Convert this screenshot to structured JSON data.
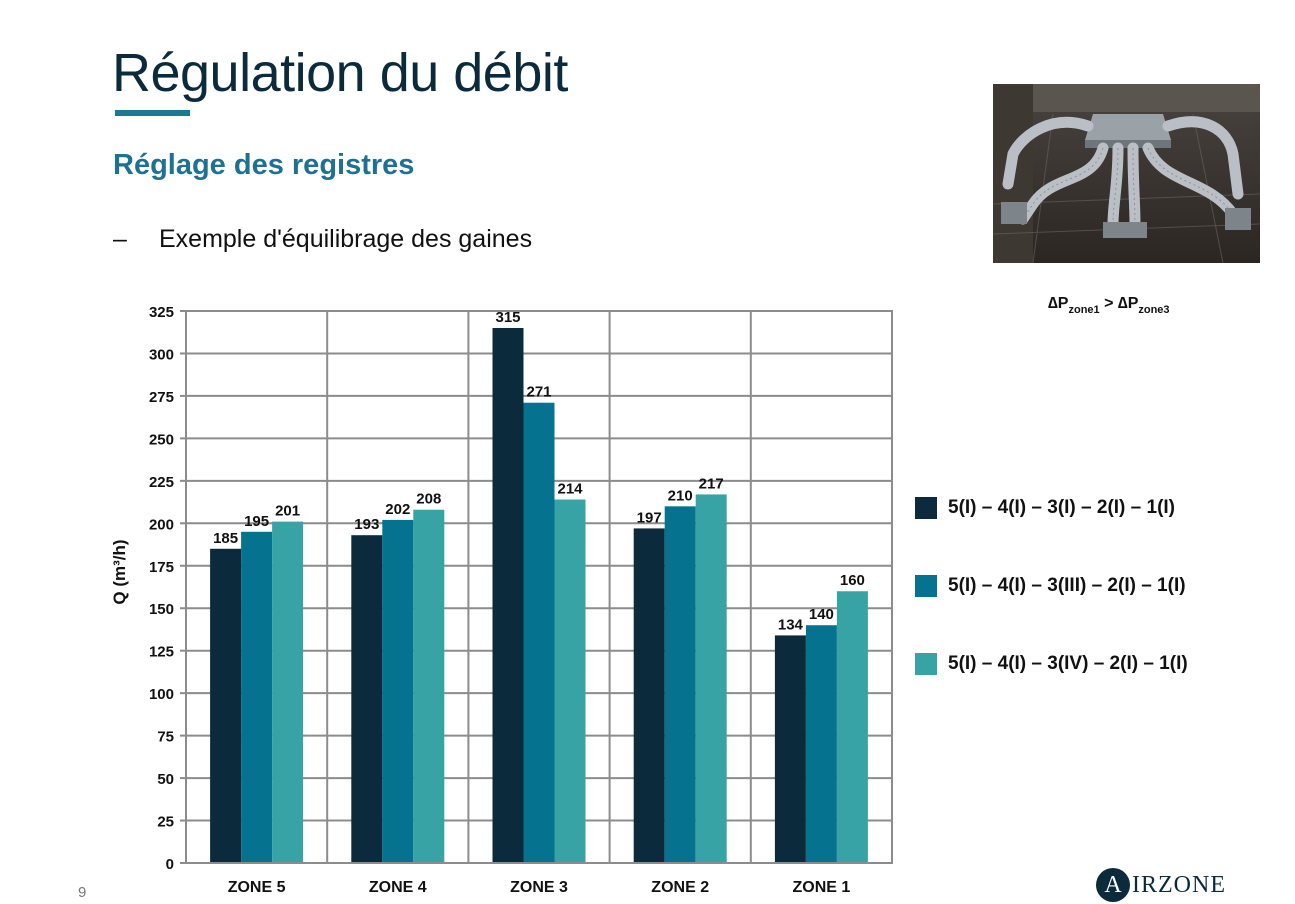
{
  "slide": {
    "title": "Régulation du débit",
    "subtitle": "Réglage des registres",
    "bullet_dash": "–",
    "bullet_text": "Exemple d'équilibrage des gaines",
    "page_number": "9",
    "formula": {
      "delta": "∆",
      "left_var": "P",
      "left_sub": "zone1",
      "operator": " > ",
      "right_var": "P",
      "right_sub": "zone3"
    },
    "logo": {
      "initial": "A",
      "rest": "IRZONE"
    }
  },
  "chart_data": {
    "type": "bar",
    "categories": [
      "ZONE 5",
      "ZONE 4",
      "ZONE 3",
      "ZONE 2",
      "ZONE 1"
    ],
    "series": [
      {
        "name": "5(I) – 4(I) – 3(I) – 2(I) – 1(I)",
        "values": [
          185,
          193,
          315,
          197,
          134
        ],
        "color": "#0b2b3c"
      },
      {
        "name": "5(I) – 4(I) – 3(III) – 2(I) – 1(I)",
        "values": [
          195,
          202,
          271,
          210,
          140
        ],
        "color": "#05738f"
      },
      {
        "name": "5(I) – 4(I) – 3(IV) – 2(I) – 1(I)",
        "values": [
          201,
          208,
          214,
          217,
          160
        ],
        "color": "#38a3a5"
      }
    ],
    "ylabel": "Q (m³/h)",
    "ylim": [
      0,
      325
    ],
    "yticks": [
      0,
      25,
      50,
      75,
      100,
      125,
      150,
      175,
      200,
      225,
      250,
      275,
      300,
      325
    ],
    "grid": true,
    "legend": "right",
    "data_labels": true
  }
}
